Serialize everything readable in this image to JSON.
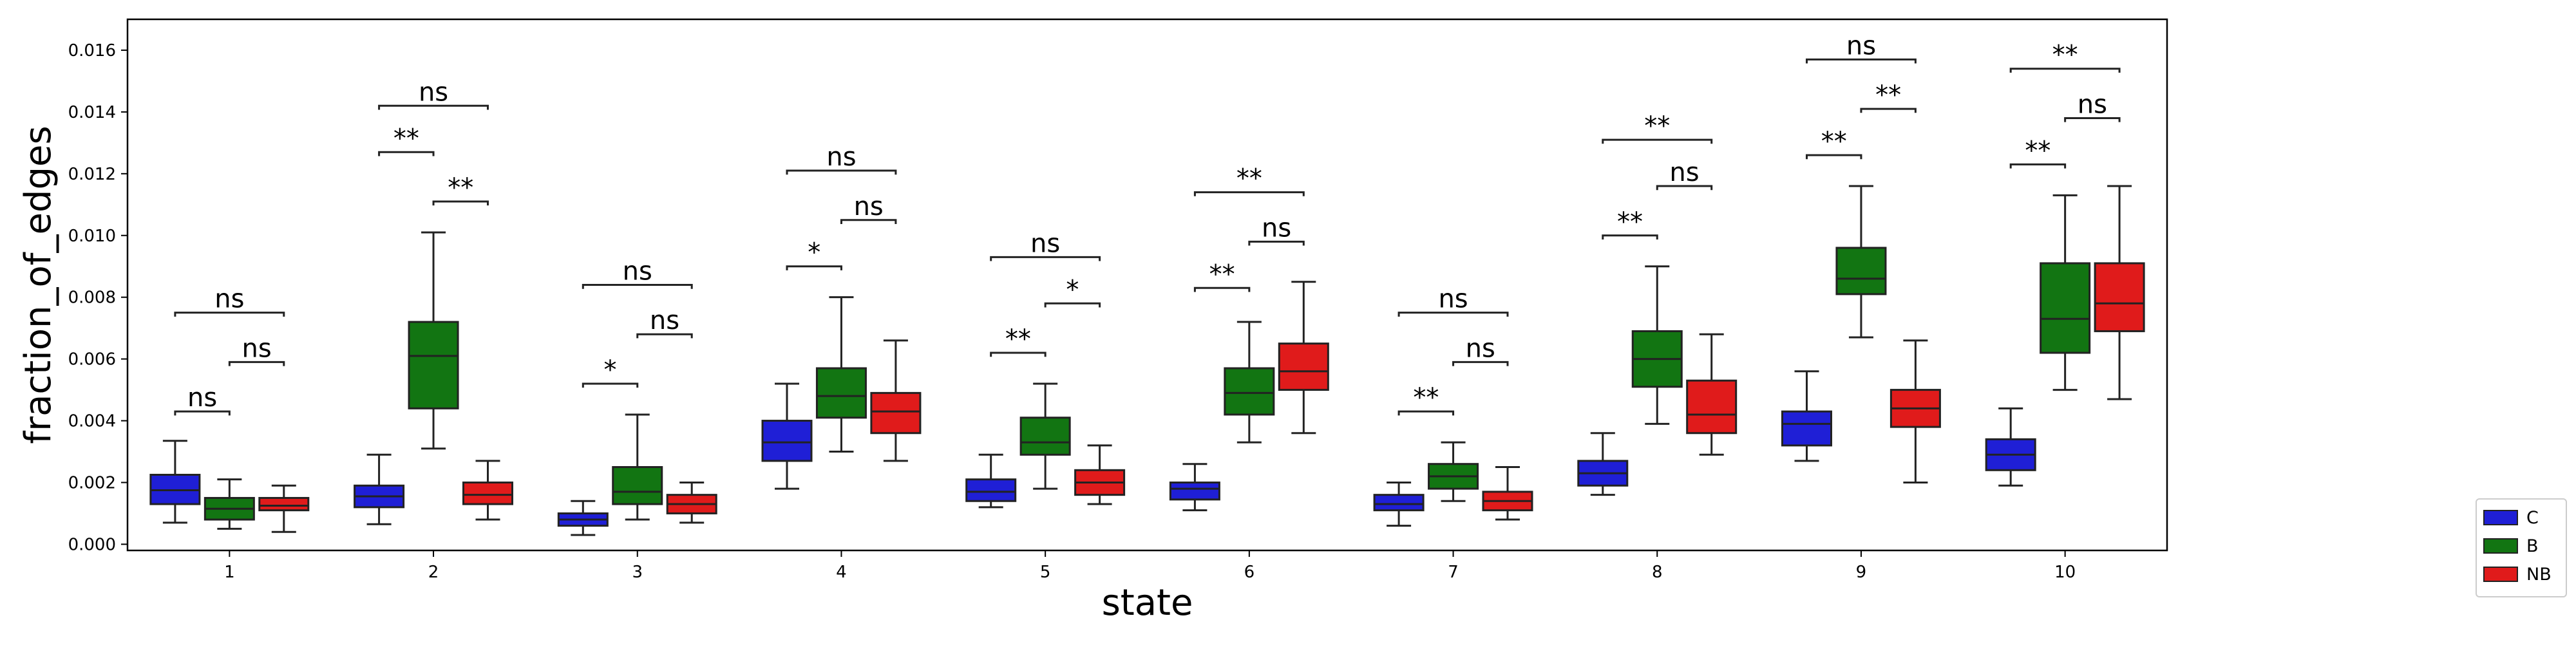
{
  "chart_data": {
    "type": "box",
    "xlabel": "state",
    "ylabel": "fraction_of_edges",
    "categories": [
      "1",
      "2",
      "3",
      "4",
      "5",
      "6",
      "7",
      "8",
      "9",
      "10"
    ],
    "ylim": [
      -0.0002,
      0.017
    ],
    "yticks": [
      0.0,
      0.002,
      0.004,
      0.006,
      0.008,
      0.01,
      0.012,
      0.014,
      0.016
    ],
    "ytick_labels": [
      "0.000",
      "0.002",
      "0.004",
      "0.006",
      "0.008",
      "0.010",
      "0.012",
      "0.014",
      "0.016"
    ],
    "grid": false,
    "legend_position": "right, outside plot area",
    "series": [
      {
        "name": "C",
        "color": "#1f1fd6",
        "boxes": [
          {
            "whislo": 0.0007,
            "q1": 0.0013,
            "med": 0.00175,
            "q3": 0.00225,
            "whishi": 0.00335
          },
          {
            "whislo": 0.00065,
            "q1": 0.0012,
            "med": 0.00155,
            "q3": 0.0019,
            "whishi": 0.0029
          },
          {
            "whislo": 0.0003,
            "q1": 0.0006,
            "med": 0.0008,
            "q3": 0.001,
            "whishi": 0.0014
          },
          {
            "whislo": 0.0018,
            "q1": 0.0027,
            "med": 0.0033,
            "q3": 0.004,
            "whishi": 0.0052
          },
          {
            "whislo": 0.0012,
            "q1": 0.0014,
            "med": 0.0017,
            "q3": 0.0021,
            "whishi": 0.0029
          },
          {
            "whislo": 0.0011,
            "q1": 0.00145,
            "med": 0.0018,
            "q3": 0.002,
            "whishi": 0.0026
          },
          {
            "whislo": 0.0006,
            "q1": 0.0011,
            "med": 0.0013,
            "q3": 0.0016,
            "whishi": 0.002
          },
          {
            "whislo": 0.0016,
            "q1": 0.0019,
            "med": 0.0023,
            "q3": 0.0027,
            "whishi": 0.0036
          },
          {
            "whislo": 0.0027,
            "q1": 0.0032,
            "med": 0.0039,
            "q3": 0.0043,
            "whishi": 0.0056
          },
          {
            "whislo": 0.0019,
            "q1": 0.0024,
            "med": 0.0029,
            "q3": 0.0034,
            "whishi": 0.0044
          }
        ]
      },
      {
        "name": "B",
        "color": "#127512",
        "boxes": [
          {
            "whislo": 0.0005,
            "q1": 0.0008,
            "med": 0.00115,
            "q3": 0.0015,
            "whishi": 0.0021
          },
          {
            "whislo": 0.0031,
            "q1": 0.0044,
            "med": 0.0061,
            "q3": 0.0072,
            "whishi": 0.0101
          },
          {
            "whislo": 0.0008,
            "q1": 0.0013,
            "med": 0.0017,
            "q3": 0.0025,
            "whishi": 0.0042
          },
          {
            "whislo": 0.003,
            "q1": 0.0041,
            "med": 0.0048,
            "q3": 0.0057,
            "whishi": 0.008
          },
          {
            "whislo": 0.0018,
            "q1": 0.0029,
            "med": 0.0033,
            "q3": 0.0041,
            "whishi": 0.0052
          },
          {
            "whislo": 0.0033,
            "q1": 0.0042,
            "med": 0.0049,
            "q3": 0.0057,
            "whishi": 0.0072
          },
          {
            "whislo": 0.0014,
            "q1": 0.0018,
            "med": 0.0022,
            "q3": 0.0026,
            "whishi": 0.0033
          },
          {
            "whislo": 0.0039,
            "q1": 0.0051,
            "med": 0.006,
            "q3": 0.0069,
            "whishi": 0.009
          },
          {
            "whislo": 0.0067,
            "q1": 0.0081,
            "med": 0.0086,
            "q3": 0.0096,
            "whishi": 0.0116
          },
          {
            "whislo": 0.005,
            "q1": 0.0062,
            "med": 0.0073,
            "q3": 0.0091,
            "whishi": 0.0113
          }
        ]
      },
      {
        "name": "NB",
        "color": "#e01b1b",
        "boxes": [
          {
            "whislo": 0.0004,
            "q1": 0.0011,
            "med": 0.00125,
            "q3": 0.0015,
            "whishi": 0.0019
          },
          {
            "whislo": 0.0008,
            "q1": 0.0013,
            "med": 0.0016,
            "q3": 0.002,
            "whishi": 0.0027
          },
          {
            "whislo": 0.0007,
            "q1": 0.001,
            "med": 0.0013,
            "q3": 0.0016,
            "whishi": 0.002
          },
          {
            "whislo": 0.0027,
            "q1": 0.0036,
            "med": 0.0043,
            "q3": 0.0049,
            "whishi": 0.0066
          },
          {
            "whislo": 0.0013,
            "q1": 0.0016,
            "med": 0.002,
            "q3": 0.0024,
            "whishi": 0.0032
          },
          {
            "whislo": 0.0036,
            "q1": 0.005,
            "med": 0.0056,
            "q3": 0.0065,
            "whishi": 0.0085
          },
          {
            "whislo": 0.0008,
            "q1": 0.0011,
            "med": 0.0014,
            "q3": 0.0017,
            "whishi": 0.0025
          },
          {
            "whislo": 0.0029,
            "q1": 0.0036,
            "med": 0.0042,
            "q3": 0.0053,
            "whishi": 0.0068
          },
          {
            "whislo": 0.002,
            "q1": 0.0038,
            "med": 0.0044,
            "q3": 0.005,
            "whishi": 0.0066
          },
          {
            "whislo": 0.0047,
            "q1": 0.0069,
            "med": 0.0078,
            "q3": 0.0091,
            "whishi": 0.0116
          }
        ]
      }
    ],
    "annotations": [
      {
        "state": "1",
        "pairs": [
          {
            "from": "C",
            "to": "B",
            "y": 0.0043,
            "label": "ns"
          },
          {
            "from": "B",
            "to": "NB",
            "y": 0.0059,
            "label": "ns"
          },
          {
            "from": "C",
            "to": "NB",
            "y": 0.0075,
            "label": "ns"
          }
        ]
      },
      {
        "state": "2",
        "pairs": [
          {
            "from": "C",
            "to": "B",
            "y": 0.0127,
            "label": "**"
          },
          {
            "from": "B",
            "to": "NB",
            "y": 0.0111,
            "label": "**"
          },
          {
            "from": "C",
            "to": "NB",
            "y": 0.0142,
            "label": "ns"
          }
        ]
      },
      {
        "state": "3",
        "pairs": [
          {
            "from": "C",
            "to": "B",
            "y": 0.0052,
            "label": "*"
          },
          {
            "from": "B",
            "to": "NB",
            "y": 0.0068,
            "label": "ns"
          },
          {
            "from": "C",
            "to": "NB",
            "y": 0.0084,
            "label": "ns"
          }
        ]
      },
      {
        "state": "4",
        "pairs": [
          {
            "from": "C",
            "to": "B",
            "y": 0.009,
            "label": "*"
          },
          {
            "from": "B",
            "to": "NB",
            "y": 0.0105,
            "label": "ns"
          },
          {
            "from": "C",
            "to": "NB",
            "y": 0.0121,
            "label": "ns"
          }
        ]
      },
      {
        "state": "5",
        "pairs": [
          {
            "from": "C",
            "to": "B",
            "y": 0.0062,
            "label": "**"
          },
          {
            "from": "B",
            "to": "NB",
            "y": 0.0078,
            "label": "*"
          },
          {
            "from": "C",
            "to": "NB",
            "y": 0.0093,
            "label": "ns"
          }
        ]
      },
      {
        "state": "6",
        "pairs": [
          {
            "from": "C",
            "to": "B",
            "y": 0.0083,
            "label": "**"
          },
          {
            "from": "B",
            "to": "NB",
            "y": 0.0098,
            "label": "ns"
          },
          {
            "from": "C",
            "to": "NB",
            "y": 0.0114,
            "label": "**"
          }
        ]
      },
      {
        "state": "7",
        "pairs": [
          {
            "from": "C",
            "to": "B",
            "y": 0.0043,
            "label": "**"
          },
          {
            "from": "B",
            "to": "NB",
            "y": 0.0059,
            "label": "ns"
          },
          {
            "from": "C",
            "to": "NB",
            "y": 0.0075,
            "label": "ns"
          }
        ]
      },
      {
        "state": "8",
        "pairs": [
          {
            "from": "C",
            "to": "B",
            "y": 0.01,
            "label": "**"
          },
          {
            "from": "B",
            "to": "NB",
            "y": 0.0116,
            "label": "ns"
          },
          {
            "from": "C",
            "to": "NB",
            "y": 0.0131,
            "label": "**"
          }
        ]
      },
      {
        "state": "9",
        "pairs": [
          {
            "from": "C",
            "to": "B",
            "y": 0.0126,
            "label": "**"
          },
          {
            "from": "B",
            "to": "NB",
            "y": 0.0141,
            "label": "**"
          },
          {
            "from": "C",
            "to": "NB",
            "y": 0.0157,
            "label": "ns"
          }
        ]
      },
      {
        "state": "10",
        "pairs": [
          {
            "from": "C",
            "to": "B",
            "y": 0.0123,
            "label": "**"
          },
          {
            "from": "B",
            "to": "NB",
            "y": 0.0138,
            "label": "ns"
          },
          {
            "from": "C",
            "to": "NB",
            "y": 0.0154,
            "label": "**"
          }
        ]
      }
    ]
  }
}
